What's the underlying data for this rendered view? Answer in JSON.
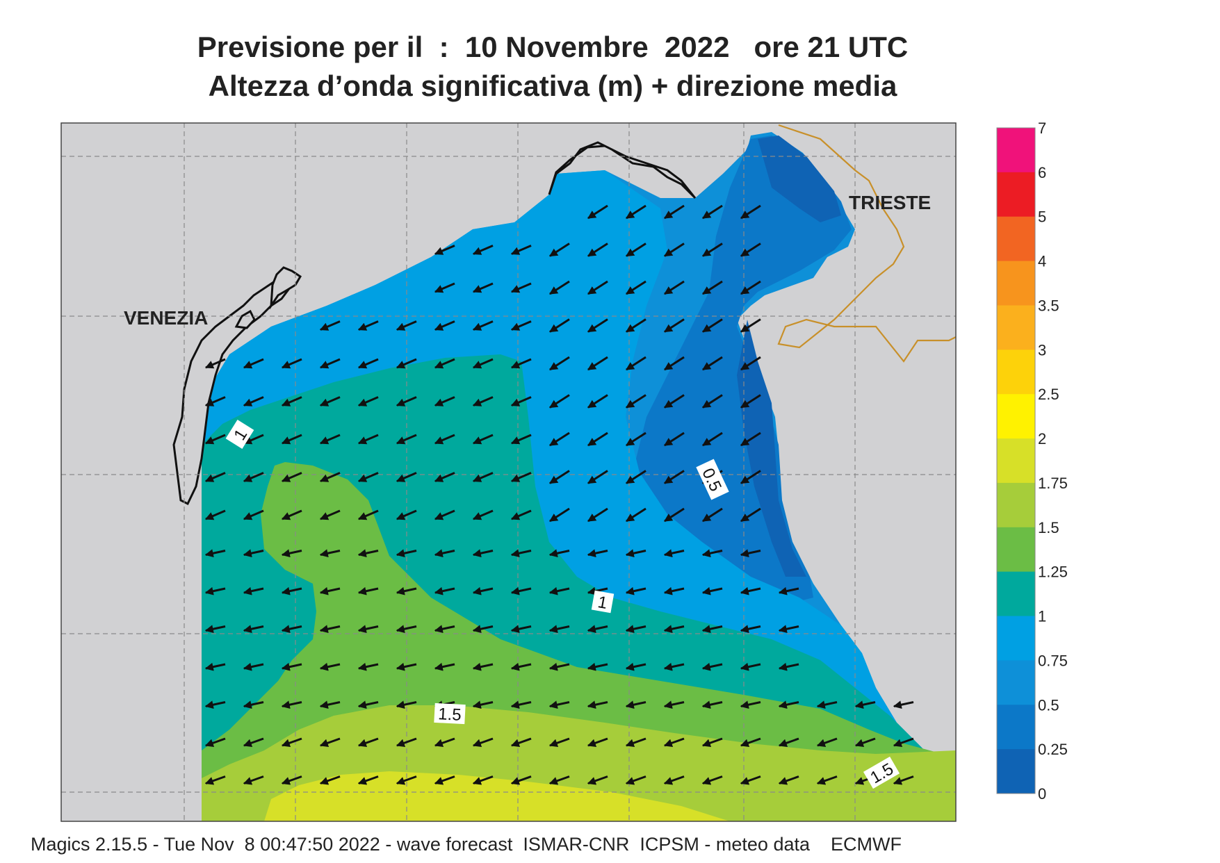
{
  "header": {
    "title_line1": "Previsione per il  :  10 Novembre  2022   ore 21 UTC",
    "title_line2": "Altezza d’onda significativa (m) + direzione media"
  },
  "map": {
    "labels": {
      "venice": "VENEZIA",
      "trieste": "TRIESTE"
    },
    "contour_labels": [
      "1",
      "0.5",
      "1",
      "1.5",
      "1.5"
    ],
    "land_color": "#d1d1d3",
    "border_color": "#c8902a"
  },
  "legend": {
    "ticks": [
      "7",
      "6",
      "5",
      "4",
      "3.5",
      "3",
      "2.5",
      "2",
      "1.75",
      "1.5",
      "1.25",
      "1",
      "0.75",
      "0.5",
      "0.25",
      "0"
    ],
    "colors": [
      "#f0127a",
      "#ec1c24",
      "#f26522",
      "#f7941d",
      "#fbb01d",
      "#fdd20a",
      "#fff200",
      "#d7e028",
      "#a6cd3a",
      "#6bbd45",
      "#00a99d",
      "#00a0e3",
      "#0e90d8",
      "#0c78c8",
      "#0f63b4"
    ]
  },
  "footer": {
    "text": "Magics 2.15.5 - Tue Nov  8 00:47:50 2022 - wave forecast  ISMAR-CNR  ICPSM - meteo data    ECMWF"
  }
}
